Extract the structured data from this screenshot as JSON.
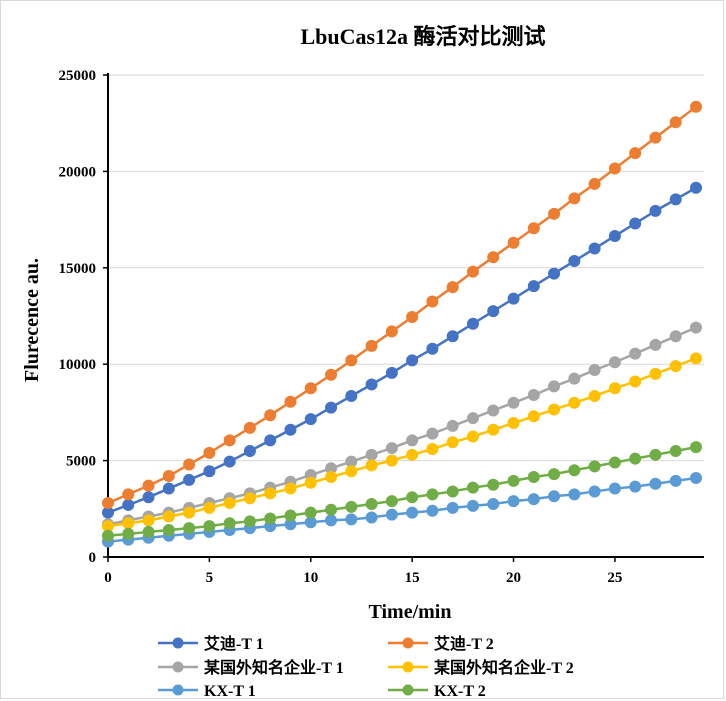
{
  "chart_data": {
    "type": "line",
    "title": "LbuCas12a 酶活对比测试",
    "xlabel": "Time/min",
    "ylabel": "Flurecence au.",
    "xlim": [
      0,
      29
    ],
    "ylim": [
      0,
      25000
    ],
    "x_ticks": [
      "0",
      "5",
      "10",
      "15",
      "20",
      "25"
    ],
    "y_ticks": [
      "0",
      "5000",
      "10000",
      "15000",
      "20000",
      "25000"
    ],
    "grid": true,
    "legend_position": "bottom",
    "x": [
      0,
      1,
      2,
      3,
      4,
      5,
      6,
      7,
      8,
      9,
      10,
      11,
      12,
      13,
      14,
      15,
      16,
      17,
      18,
      19,
      20,
      21,
      22,
      23,
      24,
      25,
      26,
      27,
      28,
      29
    ],
    "series": [
      {
        "name": "艾迪-T 1",
        "color": "#4472c4",
        "values": [
          2300,
          2700,
          3100,
          3550,
          4000,
          4450,
          4950,
          5500,
          6050,
          6600,
          7150,
          7750,
          8350,
          8950,
          9550,
          10200,
          10800,
          11450,
          12100,
          12750,
          13400,
          14050,
          14700,
          15350,
          16000,
          16650,
          17300,
          17950,
          18550,
          19150
        ]
      },
      {
        "name": "艾迪-T 2",
        "color": "#ed7d31",
        "values": [
          2800,
          3250,
          3700,
          4200,
          4800,
          5400,
          6050,
          6700,
          7350,
          8050,
          8750,
          9450,
          10200,
          10950,
          11700,
          12450,
          13250,
          14000,
          14800,
          15550,
          16300,
          17050,
          17800,
          18600,
          19350,
          20150,
          20950,
          21750,
          22550,
          23350
        ]
      },
      {
        "name": "某国外知名企业-T 1",
        "color": "#a5a5a5",
        "values": [
          1700,
          1900,
          2100,
          2300,
          2550,
          2800,
          3050,
          3300,
          3600,
          3900,
          4250,
          4600,
          4950,
          5300,
          5650,
          6050,
          6400,
          6800,
          7200,
          7600,
          8000,
          8400,
          8850,
          9250,
          9700,
          10100,
          10550,
          11000,
          11450,
          11900
        ]
      },
      {
        "name": "某国外知名企业-T 2",
        "color": "#ffc000",
        "values": [
          1600,
          1750,
          1900,
          2100,
          2300,
          2550,
          2800,
          3050,
          3300,
          3550,
          3850,
          4150,
          4450,
          4750,
          5000,
          5300,
          5600,
          5950,
          6250,
          6600,
          6950,
          7300,
          7650,
          8000,
          8350,
          8750,
          9100,
          9500,
          9900,
          10300
        ]
      },
      {
        "name": "KX-T 1",
        "color": "#5b9bd5",
        "values": [
          800,
          900,
          1000,
          1100,
          1200,
          1300,
          1400,
          1500,
          1600,
          1700,
          1800,
          1900,
          1950,
          2050,
          2200,
          2300,
          2400,
          2550,
          2650,
          2750,
          2900,
          3000,
          3150,
          3250,
          3400,
          3550,
          3650,
          3800,
          3950,
          4100
        ]
      },
      {
        "name": "KX-T 2",
        "color": "#70ad47",
        "values": [
          1100,
          1200,
          1300,
          1400,
          1500,
          1600,
          1750,
          1850,
          2000,
          2150,
          2300,
          2450,
          2600,
          2750,
          2900,
          3100,
          3250,
          3400,
          3600,
          3750,
          3950,
          4150,
          4300,
          4500,
          4700,
          4900,
          5100,
          5300,
          5500,
          5700
        ]
      }
    ]
  }
}
